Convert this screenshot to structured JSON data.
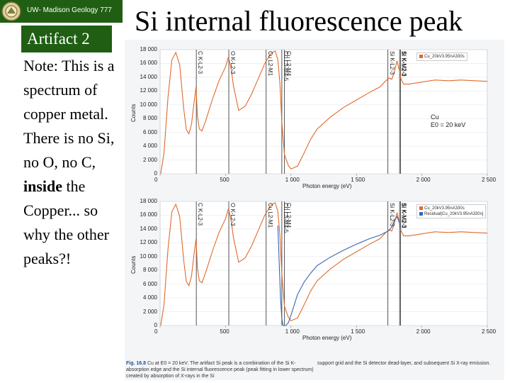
{
  "header": {
    "text": "UW- Madison Geology  777"
  },
  "sidebar": {
    "artifact_label": "Artifact 2",
    "note_1": "Note: This is a spectrum of copper metal. There is no Si, no O, no C, ",
    "note_bold": "inside",
    "note_2": " the Copper... so why the other peaks?!"
  },
  "slide": {
    "title": "Si internal fluorescence peak"
  },
  "figure": {
    "caption_label": "Fig. 16.8",
    "caption_text": "Cu at E0 = 20 keV. The artifact Si peak is a combination of the Si K-absorption edge and the Si internal fluorescence peak (peak fitting in lower spectrum) created by absorption of X-rays in the Si",
    "caption_text_2": "support grid and the Si detector dead-layer, and subsequent Si X-ray emission.",
    "annotation_line1": "Cu",
    "annotation_line2": "E0 = 20 keV"
  },
  "chart_data": [
    {
      "type": "line",
      "xlabel": "Photon energy (eV)",
      "ylabel": "Counts",
      "xlim": [
        0,
        2500
      ],
      "ylim": [
        0,
        18000
      ],
      "x_ticks": [
        "0",
        "500",
        "1 000",
        "1 500",
        "2 000",
        "2 500"
      ],
      "y_ticks": [
        "0",
        "2 000",
        "4 000",
        "6 000",
        "8 000",
        "10 000",
        "12 000",
        "14 000",
        "16 000",
        "18 000"
      ],
      "legend": [
        "Cu_20kV3.95nA330s"
      ],
      "marker_lines": [
        {
          "x": 277,
          "label": "C K-L2-3"
        },
        {
          "x": 525,
          "label": "O K-L2-3"
        },
        {
          "x": 810,
          "label": "Cu L2-M1"
        },
        {
          "x": 930,
          "label": "Cu L3-M4-5"
        },
        {
          "x": 950,
          "label": "Cu L2-M4"
        },
        {
          "x": 1740,
          "label": "Si K-L2-3"
        },
        {
          "x": 1837,
          "label": "Si K-M2-3"
        },
        {
          "x": 1830,
          "label": "Si K-M2-3"
        }
      ],
      "series": [
        {
          "name": "Cu_20kV3.95nA330s",
          "color": "#e06a2c",
          "x": [
            5,
            30,
            60,
            90,
            120,
            150,
            180,
            200,
            220,
            240,
            260,
            275,
            285,
            300,
            320,
            350,
            400,
            450,
            500,
            520,
            530,
            545,
            560,
            600,
            650,
            700,
            750,
            800,
            850,
            880,
            900,
            915,
            930,
            950,
            980,
            1000,
            1050,
            1100,
            1150,
            1200,
            1300,
            1400,
            1500,
            1600,
            1680,
            1720,
            1750,
            1770,
            1790,
            1810,
            1830,
            1840,
            1860,
            1900,
            2000,
            2100,
            2200,
            2300,
            2400,
            2500
          ],
          "y": [
            0,
            3000,
            11000,
            16500,
            17600,
            15800,
            9500,
            6400,
            5800,
            7200,
            10400,
            12600,
            8400,
            6500,
            6200,
            7800,
            10800,
            13500,
            15500,
            16800,
            16400,
            15000,
            12800,
            9200,
            9800,
            11600,
            13800,
            16000,
            17500,
            17800,
            16500,
            13200,
            7500,
            2800,
            1200,
            700,
            1100,
            3000,
            5000,
            6500,
            8200,
            9600,
            10700,
            11800,
            12600,
            13400,
            13900,
            13700,
            14800,
            16400,
            14800,
            13800,
            13000,
            13000,
            13300,
            13600,
            13500,
            13600,
            13500,
            13400
          ]
        }
      ]
    },
    {
      "type": "line",
      "xlabel": "Photon energy (eV)",
      "ylabel": "Counts",
      "xlim": [
        0,
        2500
      ],
      "ylim": [
        0,
        18000
      ],
      "x_ticks": [
        "0",
        "500",
        "1 000",
        "1 500",
        "2 000",
        "2 500"
      ],
      "y_ticks": [
        "0",
        "2 000",
        "4 000",
        "6 000",
        "8 000",
        "10 000",
        "12 000",
        "14 000",
        "16 000",
        "18 000"
      ],
      "legend": [
        "Cu_20kV3.95nA330s",
        "Residual[Cu_20kV3.95nA330s]"
      ],
      "marker_lines": [
        {
          "x": 277,
          "label": "C K-L2-3"
        },
        {
          "x": 525,
          "label": "O K-L2-3"
        },
        {
          "x": 810,
          "label": "Cu L2-M1"
        },
        {
          "x": 930,
          "label": "Cu L3-M4-5"
        },
        {
          "x": 950,
          "label": "Cu L2-M4"
        },
        {
          "x": 1740,
          "label": "Si K-L2-3"
        },
        {
          "x": 1837,
          "label": "Si K-M2-3"
        },
        {
          "x": 1830,
          "label": "Si K-M2-3"
        }
      ],
      "series": [
        {
          "name": "Cu_20kV3.95nA330s",
          "color": "#e06a2c",
          "x": [
            5,
            30,
            60,
            90,
            120,
            150,
            180,
            200,
            220,
            240,
            260,
            275,
            285,
            300,
            320,
            350,
            400,
            450,
            500,
            520,
            530,
            545,
            560,
            600,
            650,
            700,
            750,
            800,
            850,
            880,
            900,
            915,
            930,
            950,
            980,
            1000,
            1050,
            1100,
            1150,
            1200,
            1300,
            1400,
            1500,
            1600,
            1680,
            1720,
            1750,
            1770,
            1790,
            1810,
            1830,
            1840,
            1860,
            1900,
            2000,
            2100,
            2200,
            2300,
            2400,
            2500
          ],
          "y": [
            0,
            3000,
            11000,
            16500,
            17600,
            15800,
            9500,
            6400,
            5800,
            7200,
            10400,
            12600,
            8400,
            6500,
            6200,
            7800,
            10800,
            13500,
            15500,
            16800,
            16400,
            15000,
            12800,
            9200,
            9800,
            11600,
            13800,
            16000,
            17500,
            17800,
            16500,
            13200,
            7500,
            2800,
            1200,
            700,
            1100,
            3000,
            5000,
            6500,
            8200,
            9600,
            10700,
            11800,
            12600,
            13400,
            13900,
            13700,
            14800,
            16400,
            14800,
            13800,
            13000,
            13000,
            13300,
            13600,
            13500,
            13600,
            13500,
            13400
          ]
        },
        {
          "name": "Residual[Cu_20kV3.95nA330s]",
          "color": "#3a64b0",
          "x": [
            900,
            910,
            920,
            930,
            940,
            950,
            960,
            980,
            1000,
            1050,
            1100,
            1150,
            1200,
            1300,
            1400,
            1500,
            1600,
            1680,
            1720,
            1750,
            1770,
            1790,
            1810,
            1830,
            1840
          ],
          "y": [
            14500,
            9000,
            4000,
            1000,
            0,
            0,
            0,
            400,
            1500,
            4500,
            6300,
            7600,
            8700,
            9900,
            10900,
            11800,
            12600,
            13100,
            13500,
            13800,
            14300,
            15200,
            15800,
            14800,
            14000
          ]
        }
      ]
    }
  ]
}
